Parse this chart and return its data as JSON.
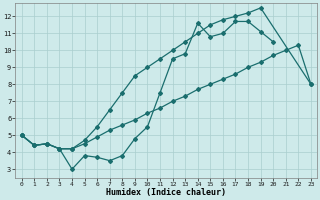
{
  "xlabel": "Humidex (Indice chaleur)",
  "bg_color": "#ceeaea",
  "grid_color": "#aacece",
  "line_color": "#1a6e6e",
  "xlim": [
    -0.5,
    23.5
  ],
  "ylim": [
    2.5,
    12.8
  ],
  "xticks": [
    0,
    1,
    2,
    3,
    4,
    5,
    6,
    7,
    8,
    9,
    10,
    11,
    12,
    13,
    14,
    15,
    16,
    17,
    18,
    19,
    20,
    21,
    22,
    23
  ],
  "yticks": [
    3,
    4,
    5,
    6,
    7,
    8,
    9,
    10,
    11,
    12
  ],
  "line1_y": [
    5.0,
    4.4,
    4.5,
    4.2,
    3.0,
    3.8,
    3.7,
    3.5,
    3.8,
    4.8,
    5.5,
    7.5,
    9.5,
    9.8,
    11.6,
    10.8,
    11.0,
    11.7,
    11.7,
    11.1,
    10.5
  ],
  "line1_x": [
    0,
    1,
    2,
    3,
    4,
    5,
    6,
    7,
    8,
    9,
    10,
    11,
    12,
    13,
    14,
    15,
    16,
    17,
    18,
    19,
    20
  ],
  "line2_y": [
    5.0,
    4.4,
    4.5,
    4.2,
    4.2,
    4.7,
    5.5,
    6.5,
    7.5,
    8.5,
    9.0,
    9.5,
    10.0,
    10.5,
    11.0,
    11.5,
    11.8,
    12.0,
    12.2,
    12.5,
    8.0
  ],
  "line2_x": [
    0,
    1,
    2,
    3,
    4,
    5,
    6,
    7,
    8,
    9,
    10,
    11,
    12,
    13,
    14,
    15,
    16,
    17,
    18,
    19,
    23
  ],
  "line3_y": [
    5.0,
    4.4,
    4.5,
    4.2,
    4.2,
    4.5,
    4.9,
    5.3,
    5.6,
    5.9,
    6.3,
    6.6,
    7.0,
    7.3,
    7.7,
    8.0,
    8.3,
    8.6,
    9.0,
    9.3,
    9.7,
    10.0,
    10.3,
    8.0
  ],
  "line3_x": [
    0,
    1,
    2,
    3,
    4,
    5,
    6,
    7,
    8,
    9,
    10,
    11,
    12,
    13,
    14,
    15,
    16,
    17,
    18,
    19,
    20,
    21,
    22,
    23
  ]
}
